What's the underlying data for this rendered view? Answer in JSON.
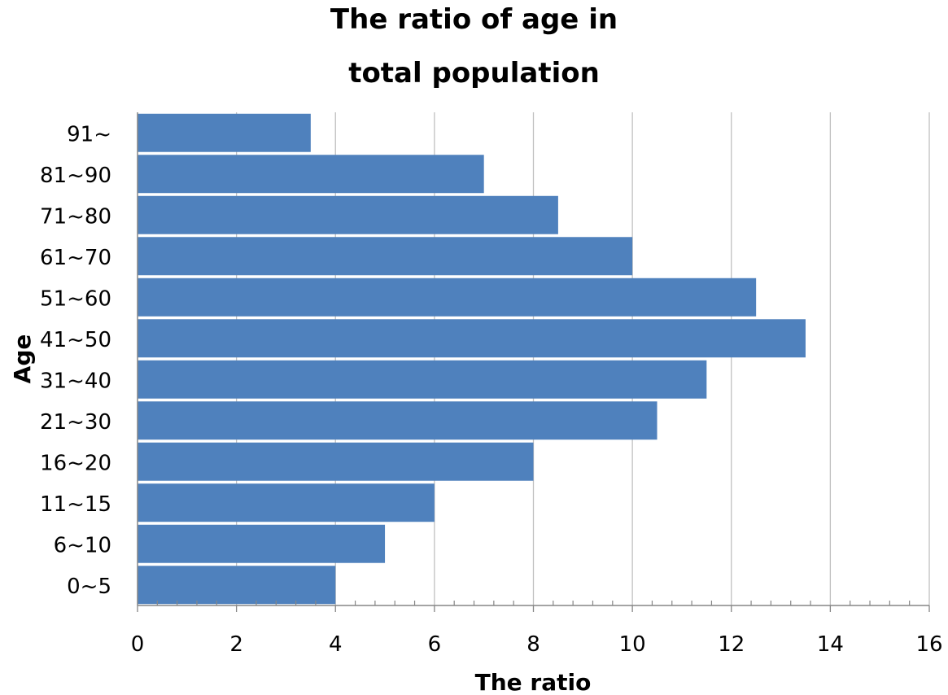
{
  "chart_data": {
    "type": "bar",
    "orientation": "horizontal",
    "title_lines": [
      "The ratio of age in",
      "total population"
    ],
    "xlabel": "The ratio",
    "ylabel": "Age",
    "categories": [
      "91~",
      "81~90",
      "71~80",
      "61~70",
      "51~60",
      "41~50",
      "31~40",
      "21~30",
      "16~20",
      "11~15",
      "6~10",
      "0~5"
    ],
    "values": [
      3.5,
      7,
      8.5,
      10,
      12.5,
      13.5,
      11.5,
      10.5,
      8,
      6,
      5,
      4
    ],
    "xlim": [
      0,
      16
    ],
    "xticks": [
      0,
      2,
      4,
      6,
      8,
      10,
      12,
      14,
      16
    ],
    "grid": "vertical",
    "legend": "none",
    "bar_color": "#4F81BD",
    "grid_color": "#BFBFBF",
    "axis_color": "#868686"
  }
}
